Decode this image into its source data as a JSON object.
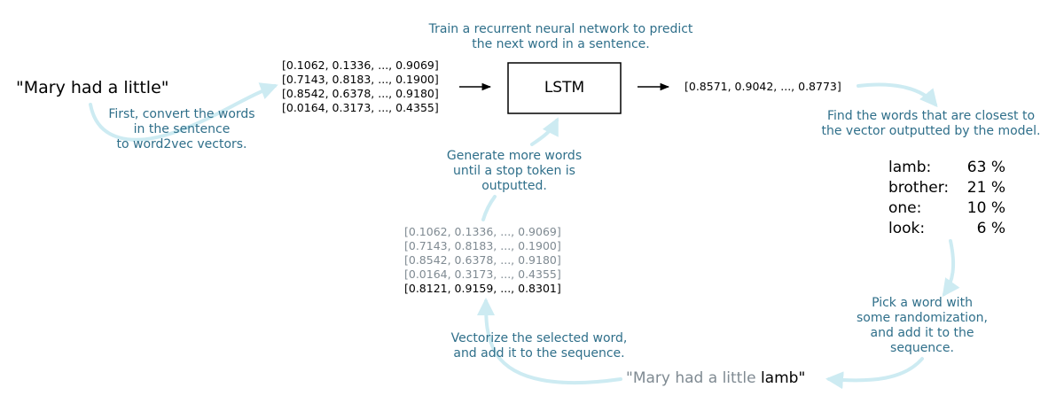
{
  "input_sentence": "\"Mary had a little\"",
  "notes": {
    "train": [
      "Train a recurrent neural network to predict",
      "the next word in a sentence."
    ],
    "convert": [
      "First, convert the words",
      "in the sentence",
      "to word2vec vectors."
    ],
    "closest": [
      "Find the words that are closest to",
      "the vector outputted by the model."
    ],
    "generate": [
      "Generate more words",
      "until a stop token is",
      "outputted."
    ],
    "pick": [
      "Pick a word with",
      "some randomization,",
      "and add it to the",
      "sequence."
    ],
    "vectorize": [
      "Vectorize the selected word,",
      "and add it to the sequence."
    ]
  },
  "input_vectors": [
    "[0.1062, 0.1336, ..., 0.9069]",
    "[0.7143, 0.8183, ..., 0.1900]",
    "[0.8542, 0.6378, ..., 0.9180]",
    "[0.0164, 0.3173, ..., 0.4355]"
  ],
  "model_label": "LSTM",
  "output_vector": "[0.8571, 0.9042, ..., 0.8773]",
  "candidates": [
    {
      "word": "lamb:",
      "prob": "63 %"
    },
    {
      "word": "brother:",
      "prob": "21 %"
    },
    {
      "word": "one:",
      "prob": "10 %"
    },
    {
      "word": "look:",
      "prob": "6 %"
    }
  ],
  "sequence_vectors": {
    "previous": [
      "[0.1062, 0.1336, ..., 0.9069]",
      "[0.7143, 0.8183, ..., 0.1900]",
      "[0.8542, 0.6378, ..., 0.9180]",
      "[0.0164, 0.3173, ..., 0.4355]"
    ],
    "new": "[0.8121, 0.9159, ..., 0.8301]"
  },
  "output_sentence": {
    "open_quote": "\"",
    "prefix": "Mary had a little ",
    "new_word": "lamb",
    "close_quote": "\""
  },
  "colors": {
    "note_text": "#2f6f8a",
    "flow_arrow": "#cdebf2",
    "gray_text": "#7f8a92",
    "black": "#000000"
  }
}
